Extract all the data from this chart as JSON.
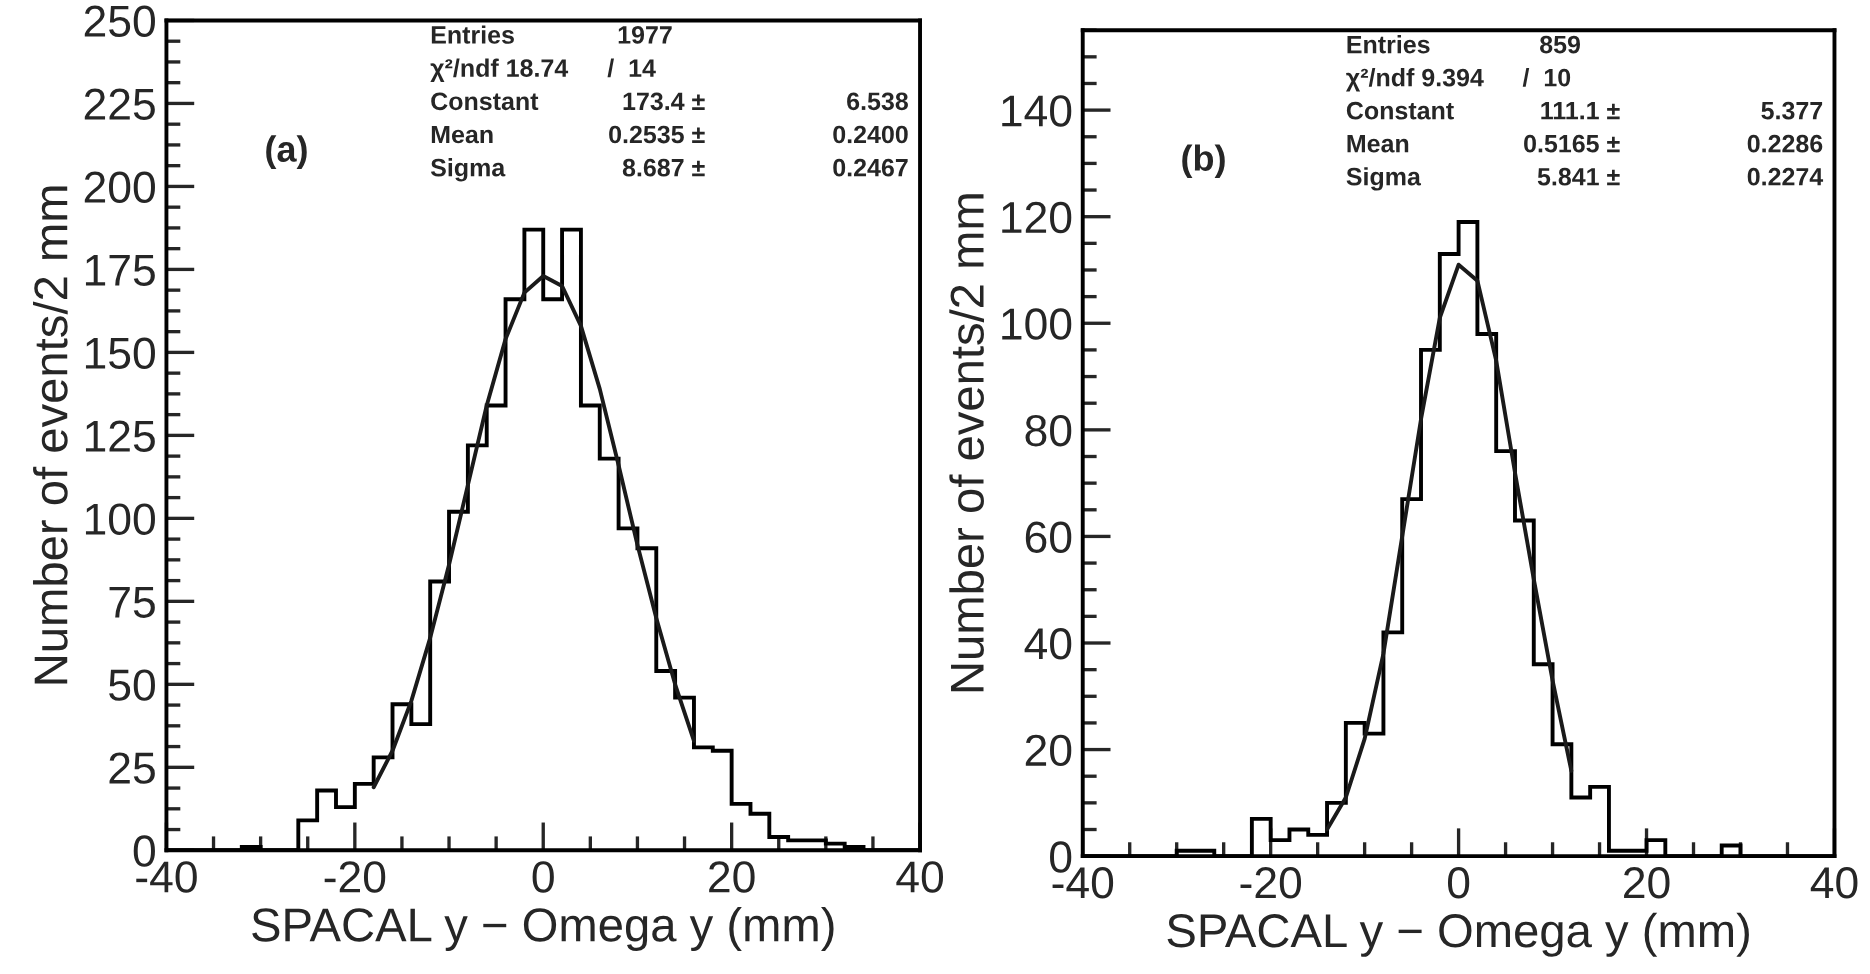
{
  "chart_data": [
    {
      "type": "histogram",
      "xlabel": "SPACAL y − Omega y (mm)",
      "ylabel": "Number of events/2 mm",
      "xlim": [
        -40,
        40
      ],
      "xticks": [
        -40,
        -20,
        0,
        20,
        40
      ],
      "ylim": [
        0,
        250
      ],
      "yticks": [
        0,
        25,
        50,
        75,
        100,
        125,
        150,
        175,
        200,
        225,
        250
      ],
      "color": "#000000",
      "grid": false,
      "annotations": [
        "(a)",
        "Entries",
        "1977",
        "χ²/ndf 18.74",
        "/  14",
        "Constant",
        "173.4 ±",
        "6.538",
        "Mean",
        "0.2535 ±",
        "0.2400",
        "Sigma",
        "8.687 ±",
        "0.2467"
      ],
      "bins": [
        -40,
        -38,
        -36,
        -34,
        -32,
        -30,
        -28,
        -26,
        -24,
        -22,
        -20,
        -18,
        -16,
        -14,
        -12,
        -10,
        -8,
        -6,
        -4,
        -2,
        0,
        2,
        4,
        6,
        8,
        10,
        12,
        14,
        16,
        18,
        20,
        22,
        24,
        26,
        28,
        30,
        32,
        34,
        36,
        38,
        40
      ],
      "values": [
        0,
        0,
        0,
        0,
        1,
        0,
        0,
        9,
        18,
        13,
        20,
        28,
        44,
        38,
        81,
        102,
        122,
        134,
        166,
        187,
        166,
        187,
        134,
        118,
        97,
        91,
        54,
        46,
        31,
        30,
        14,
        11,
        4,
        3,
        3,
        2,
        1,
        0,
        0,
        0
      ],
      "series": [
        {
          "type": "line",
          "color": "#1a1a1a",
          "x": [
            -18,
            -16,
            -14,
            -12,
            -10,
            -8,
            -6,
            -4,
            -2,
            0,
            2,
            4,
            6,
            8,
            10,
            12,
            14,
            16
          ],
          "values": [
            19,
            30,
            45,
            64,
            86,
            110,
            134,
            154,
            168,
            173,
            170,
            158,
            139,
            116,
            92,
            70,
            50,
            33
          ]
        }
      ]
    },
    {
      "type": "histogram",
      "xlabel": "SPACAL y − Omega y (mm)",
      "ylabel": "Number of events/2 mm",
      "xlim": [
        -40,
        40
      ],
      "xticks": [
        -40,
        -20,
        0,
        20,
        40
      ],
      "ylim": [
        0,
        155
      ],
      "yticks": [
        0,
        20,
        40,
        60,
        80,
        100,
        120,
        140
      ],
      "color": "#000000",
      "grid": false,
      "annotations": [
        "(b)",
        "Entries",
        "859",
        "χ²/ndf 9.394",
        "/  10",
        "Constant",
        "111.1 ±",
        "5.377",
        "Mean",
        "0.5165 ±",
        "0.2286",
        "Sigma",
        "5.841 ±",
        "0.2274"
      ],
      "bins": [
        -40,
        -38,
        -36,
        -34,
        -32,
        -30,
        -28,
        -26,
        -24,
        -22,
        -20,
        -18,
        -16,
        -14,
        -12,
        -10,
        -8,
        -6,
        -4,
        -2,
        0,
        2,
        4,
        6,
        8,
        10,
        12,
        14,
        16,
        18,
        20,
        22,
        24,
        26,
        28,
        30,
        32,
        34,
        36,
        38,
        40
      ],
      "values": [
        0,
        0,
        0,
        0,
        0,
        1,
        1,
        0,
        0,
        7,
        3,
        5,
        4,
        10,
        25,
        23,
        42,
        67,
        95,
        113,
        119,
        98,
        76,
        63,
        36,
        21,
        11,
        13,
        1,
        1,
        3,
        0,
        0,
        0,
        2,
        0,
        0,
        0,
        0,
        0
      ],
      "series": [
        {
          "type": "line",
          "color": "#1a1a1a",
          "x": [
            -14,
            -12,
            -10,
            -8,
            -6,
            -4,
            -2,
            0,
            2,
            4,
            6,
            8,
            10,
            12
          ],
          "values": [
            5,
            11,
            22,
            38,
            60,
            82,
            101,
            111,
            108,
            93,
            72,
            52,
            33,
            16
          ]
        }
      ]
    }
  ]
}
